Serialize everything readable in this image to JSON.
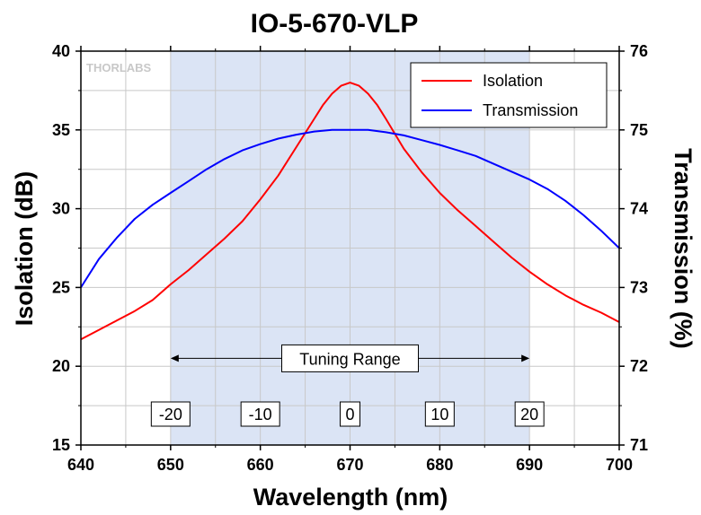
{
  "chart_data": {
    "type": "line",
    "title": "IO-5-670-VLP",
    "xlabel": "Wavelength (nm)",
    "ylabel": "Isolation (dB)",
    "y2label": "Transmission (%)",
    "xlim": [
      640,
      700
    ],
    "ylim": [
      15,
      40
    ],
    "y2lim": [
      71,
      76
    ],
    "x_ticks": [
      "640",
      "650",
      "660",
      "670",
      "680",
      "690",
      "700"
    ],
    "y_ticks": [
      "15",
      "20",
      "25",
      "30",
      "35",
      "40"
    ],
    "y2_ticks": [
      "71",
      "72",
      "73",
      "74",
      "75",
      "76"
    ],
    "grid": true,
    "legend_position": "top-right",
    "shaded_region": [
      650,
      690
    ],
    "watermark": "THORLABS",
    "annotation": {
      "label": "Tuning Range",
      "x_start": 650,
      "x_end": 690,
      "y": 20.5
    },
    "offset_labels": [
      {
        "x": 650,
        "label": "-20"
      },
      {
        "x": 660,
        "label": "-10"
      },
      {
        "x": 670,
        "label": "0"
      },
      {
        "x": 680,
        "label": "10"
      },
      {
        "x": 690,
        "label": "20"
      }
    ],
    "series": [
      {
        "name": "Isolation",
        "axis": "left",
        "color": "#ff0000",
        "x": [
          640,
          642,
          644,
          646,
          648,
          650,
          652,
          654,
          656,
          658,
          660,
          662,
          664,
          666,
          667,
          668,
          669,
          670,
          671,
          672,
          673,
          674,
          676,
          678,
          680,
          682,
          684,
          686,
          688,
          690,
          692,
          694,
          696,
          698,
          700
        ],
        "y": [
          21.7,
          22.3,
          22.9,
          23.5,
          24.2,
          25.2,
          26.1,
          27.1,
          28.1,
          29.2,
          30.6,
          32.1,
          33.9,
          35.7,
          36.6,
          37.3,
          37.8,
          38.0,
          37.8,
          37.3,
          36.6,
          35.7,
          33.8,
          32.3,
          31.0,
          29.9,
          28.9,
          27.9,
          26.9,
          26.0,
          25.2,
          24.5,
          23.9,
          23.4,
          22.8
        ]
      },
      {
        "name": "Transmission",
        "axis": "right",
        "color": "#0000ff",
        "x": [
          640,
          642,
          644,
          646,
          648,
          650,
          652,
          654,
          656,
          658,
          660,
          662,
          664,
          666,
          668,
          670,
          672,
          674,
          676,
          678,
          680,
          682,
          684,
          686,
          688,
          690,
          692,
          694,
          696,
          698,
          700
        ],
        "y": [
          73.0,
          73.36,
          73.63,
          73.87,
          74.05,
          74.2,
          74.35,
          74.5,
          74.63,
          74.74,
          74.82,
          74.89,
          74.94,
          74.98,
          75.0,
          75.0,
          75.0,
          74.97,
          74.93,
          74.87,
          74.81,
          74.74,
          74.67,
          74.57,
          74.47,
          74.37,
          74.25,
          74.1,
          73.92,
          73.72,
          73.5
        ]
      }
    ]
  }
}
